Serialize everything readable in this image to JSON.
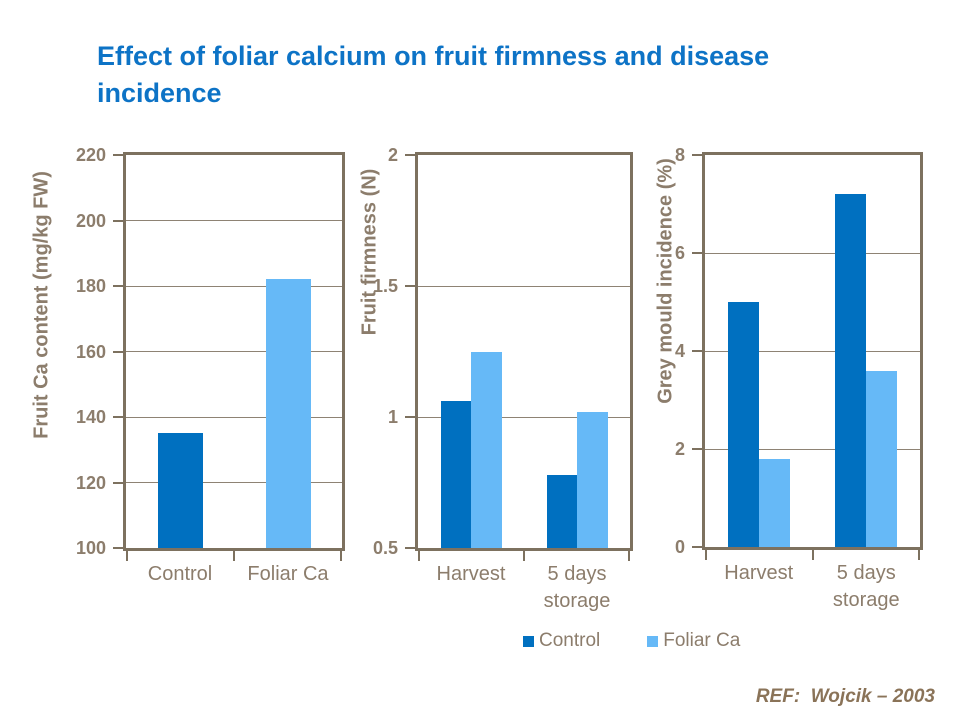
{
  "slide": {
    "title": "Effect of foliar calcium on fruit firmness and disease incidence",
    "title_lines": [
      "Effect of foliar calcium on fruit firmness and disease",
      "incidence"
    ],
    "reference": "REF:  Wojcik – 2003"
  },
  "colors": {
    "title_blue": "#0D73C6",
    "control_blue": "#0070C0",
    "foliar_light_blue": "#66B9F7",
    "axis_brown": "#7D715F",
    "gridline_brown": "#8E8374",
    "label_brown": "#8C7D6C",
    "reference_brown": "#8A7358",
    "background": "#FFFFFF"
  },
  "legend": {
    "position": "bottom",
    "items": [
      {
        "label": "Control",
        "color": "#0070C0"
      },
      {
        "label": "Foliar Ca",
        "color": "#66B9F7"
      }
    ]
  },
  "chart_data": [
    {
      "type": "bar",
      "title": "",
      "xlabel": "",
      "ylabel": "Fruit Ca content (mg/kg FW)",
      "categories": [
        "Control",
        "Foliar Ca"
      ],
      "series": [
        {
          "name": "Control",
          "values": [
            135,
            null
          ]
        },
        {
          "name": "Foliar Ca",
          "values": [
            null,
            182
          ]
        }
      ],
      "ylim": [
        100,
        220
      ],
      "yticks": [
        100,
        120,
        140,
        160,
        180,
        200,
        220
      ],
      "grid": "horizontal",
      "legend_position": "none"
    },
    {
      "type": "bar",
      "title": "",
      "xlabel": "",
      "ylabel": "Fruit firmness (N)",
      "categories": [
        "Harvest",
        "5 days\nstorage"
      ],
      "series": [
        {
          "name": "Control",
          "values": [
            1.06,
            0.78
          ]
        },
        {
          "name": "Foliar Ca",
          "values": [
            1.25,
            1.02
          ]
        }
      ],
      "ylim": [
        0.5,
        2
      ],
      "yticks": [
        0.5,
        1,
        1.5,
        2
      ],
      "grid": "horizontal",
      "legend_position": "none"
    },
    {
      "type": "bar",
      "title": "",
      "xlabel": "",
      "ylabel": "Grey mould incidence (%)",
      "categories": [
        "Harvest",
        "5 days\nstorage"
      ],
      "series": [
        {
          "name": "Control",
          "values": [
            5.0,
            7.2
          ]
        },
        {
          "name": "Foliar Ca",
          "values": [
            1.8,
            3.6
          ]
        }
      ],
      "ylim": [
        0,
        8
      ],
      "yticks": [
        0,
        2,
        4,
        6,
        8
      ],
      "grid": "horizontal",
      "legend_position": "bottom"
    }
  ]
}
